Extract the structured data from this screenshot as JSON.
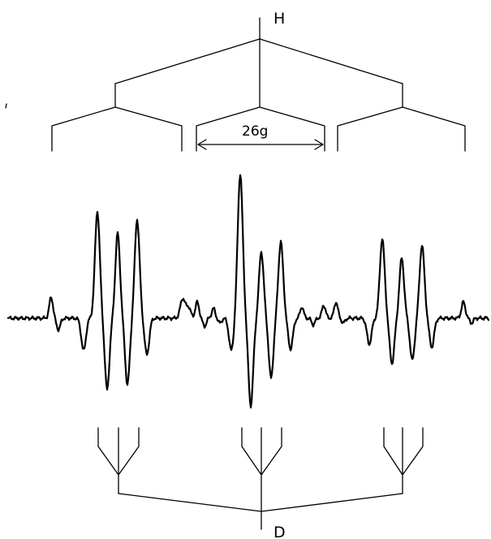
{
  "labels": {
    "top_nucleus": "H",
    "bottom_nucleus": "D",
    "splitting": "26g"
  }
}
